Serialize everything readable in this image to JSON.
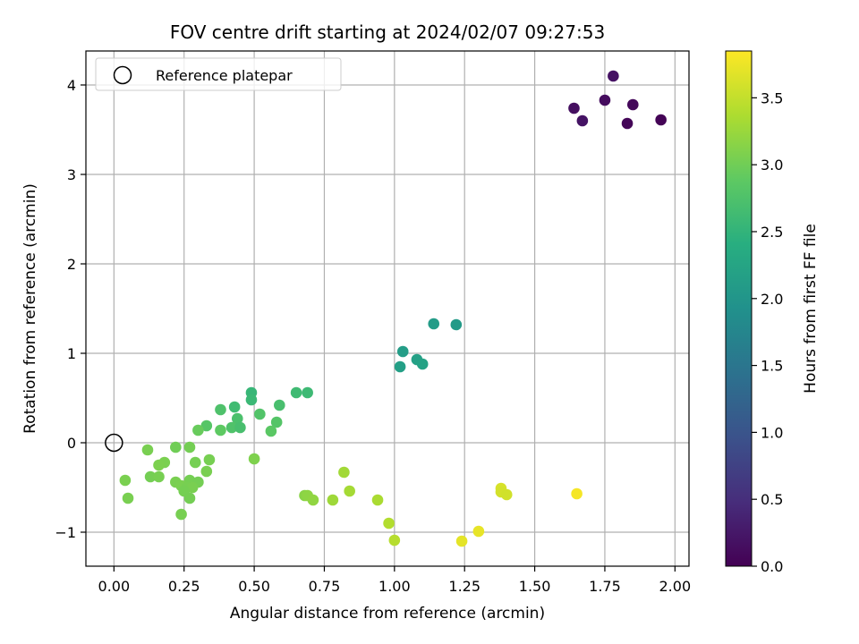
{
  "chart_data": {
    "type": "scatter",
    "title": "FOV centre drift starting at 2024/02/07 09:27:53",
    "xlabel": "Angular distance from reference (arcmin)",
    "ylabel": "Rotation from reference (arcmin)",
    "xlim": [
      -0.1,
      2.05
    ],
    "ylim": [
      -1.38,
      4.38
    ],
    "xticks": [
      0.0,
      0.25,
      0.5,
      0.75,
      1.0,
      1.25,
      1.5,
      1.75,
      2.0
    ],
    "xtick_labels": [
      "0.00",
      "0.25",
      "0.50",
      "0.75",
      "1.00",
      "1.25",
      "1.50",
      "1.75",
      "2.00"
    ],
    "yticks": [
      -1,
      0,
      1,
      2,
      3,
      4
    ],
    "ytick_labels": [
      "−1",
      "0",
      "1",
      "2",
      "3",
      "4"
    ],
    "grid": true,
    "legend": {
      "position": "upper-left",
      "entries": [
        "Reference platepar"
      ]
    },
    "reference_point": {
      "x": 0.0,
      "y": 0.0
    },
    "colorbar": {
      "label": "Hours from first FF file",
      "colormap": "viridis",
      "range": [
        0.0,
        3.85
      ],
      "ticks": [
        0.0,
        0.5,
        1.0,
        1.5,
        2.0,
        2.5,
        3.0,
        3.5
      ],
      "tick_labels": [
        "0.0",
        "0.5",
        "1.0",
        "1.5",
        "2.0",
        "2.5",
        "3.0",
        "3.5"
      ]
    },
    "points": [
      {
        "x": 1.64,
        "y": 3.74,
        "c": 0.15
      },
      {
        "x": 1.67,
        "y": 3.6,
        "c": 0.2
      },
      {
        "x": 1.75,
        "y": 3.83,
        "c": 0.12
      },
      {
        "x": 1.78,
        "y": 4.1,
        "c": 0.18
      },
      {
        "x": 1.83,
        "y": 3.57,
        "c": 0.05
      },
      {
        "x": 1.85,
        "y": 3.78,
        "c": 0.08
      },
      {
        "x": 1.95,
        "y": 3.61,
        "c": 0.03
      },
      {
        "x": 1.14,
        "y": 1.33,
        "c": 2.1
      },
      {
        "x": 1.22,
        "y": 1.32,
        "c": 2.08
      },
      {
        "x": 1.02,
        "y": 0.85,
        "c": 2.15
      },
      {
        "x": 1.03,
        "y": 1.02,
        "c": 2.12
      },
      {
        "x": 1.08,
        "y": 0.93,
        "c": 2.18
      },
      {
        "x": 1.1,
        "y": 0.88,
        "c": 2.2
      },
      {
        "x": 0.49,
        "y": 0.56,
        "c": 2.55
      },
      {
        "x": 0.69,
        "y": 0.56,
        "c": 2.6
      },
      {
        "x": 0.65,
        "y": 0.56,
        "c": 2.62
      },
      {
        "x": 0.49,
        "y": 0.48,
        "c": 2.58
      },
      {
        "x": 0.43,
        "y": 0.4,
        "c": 2.63
      },
      {
        "x": 0.59,
        "y": 0.42,
        "c": 2.7
      },
      {
        "x": 0.38,
        "y": 0.37,
        "c": 2.75
      },
      {
        "x": 0.52,
        "y": 0.32,
        "c": 2.78
      },
      {
        "x": 0.44,
        "y": 0.27,
        "c": 2.72
      },
      {
        "x": 0.58,
        "y": 0.23,
        "c": 2.8
      },
      {
        "x": 0.33,
        "y": 0.19,
        "c": 2.82
      },
      {
        "x": 0.42,
        "y": 0.17,
        "c": 2.76
      },
      {
        "x": 0.45,
        "y": 0.17,
        "c": 2.7
      },
      {
        "x": 0.3,
        "y": 0.14,
        "c": 2.95
      },
      {
        "x": 0.38,
        "y": 0.14,
        "c": 2.88
      },
      {
        "x": 0.56,
        "y": 0.13,
        "c": 2.85
      },
      {
        "x": 0.22,
        "y": -0.05,
        "c": 3.0
      },
      {
        "x": 0.27,
        "y": -0.05,
        "c": 3.02
      },
      {
        "x": 0.12,
        "y": -0.08,
        "c": 3.05
      },
      {
        "x": 0.5,
        "y": -0.18,
        "c": 3.08
      },
      {
        "x": 0.34,
        "y": -0.19,
        "c": 3.04
      },
      {
        "x": 0.18,
        "y": -0.22,
        "c": 3.06
      },
      {
        "x": 0.29,
        "y": -0.22,
        "c": 3.03
      },
      {
        "x": 0.16,
        "y": -0.25,
        "c": 3.07
      },
      {
        "x": 0.33,
        "y": -0.32,
        "c": 3.05
      },
      {
        "x": 0.13,
        "y": -0.38,
        "c": 3.02
      },
      {
        "x": 0.16,
        "y": -0.38,
        "c": 3.04
      },
      {
        "x": 0.04,
        "y": -0.42,
        "c": 3.06
      },
      {
        "x": 0.27,
        "y": -0.42,
        "c": 3.03
      },
      {
        "x": 0.22,
        "y": -0.44,
        "c": 3.05
      },
      {
        "x": 0.3,
        "y": -0.44,
        "c": 3.02
      },
      {
        "x": 0.24,
        "y": -0.48,
        "c": 3.06
      },
      {
        "x": 0.26,
        "y": -0.5,
        "c": 3.04
      },
      {
        "x": 0.28,
        "y": -0.5,
        "c": 3.05
      },
      {
        "x": 0.25,
        "y": -0.54,
        "c": 3.03
      },
      {
        "x": 0.27,
        "y": -0.62,
        "c": 3.02
      },
      {
        "x": 0.05,
        "y": -0.62,
        "c": 3.05
      },
      {
        "x": 0.24,
        "y": -0.8,
        "c": 3.04
      },
      {
        "x": 0.68,
        "y": -0.59,
        "c": 3.15
      },
      {
        "x": 0.69,
        "y": -0.59,
        "c": 3.18
      },
      {
        "x": 0.71,
        "y": -0.64,
        "c": 3.2
      },
      {
        "x": 0.82,
        "y": -0.33,
        "c": 3.3
      },
      {
        "x": 0.84,
        "y": -0.54,
        "c": 3.32
      },
      {
        "x": 0.78,
        "y": -0.64,
        "c": 3.28
      },
      {
        "x": 0.94,
        "y": -0.64,
        "c": 3.35
      },
      {
        "x": 0.98,
        "y": -0.9,
        "c": 3.4
      },
      {
        "x": 1.0,
        "y": -1.09,
        "c": 3.42
      },
      {
        "x": 1.24,
        "y": -1.1,
        "c": 3.7
      },
      {
        "x": 1.3,
        "y": -0.99,
        "c": 3.72
      },
      {
        "x": 1.38,
        "y": -0.51,
        "c": 3.62
      },
      {
        "x": 1.38,
        "y": -0.55,
        "c": 3.6
      },
      {
        "x": 1.4,
        "y": -0.58,
        "c": 3.58
      },
      {
        "x": 1.65,
        "y": -0.57,
        "c": 3.8
      }
    ]
  }
}
